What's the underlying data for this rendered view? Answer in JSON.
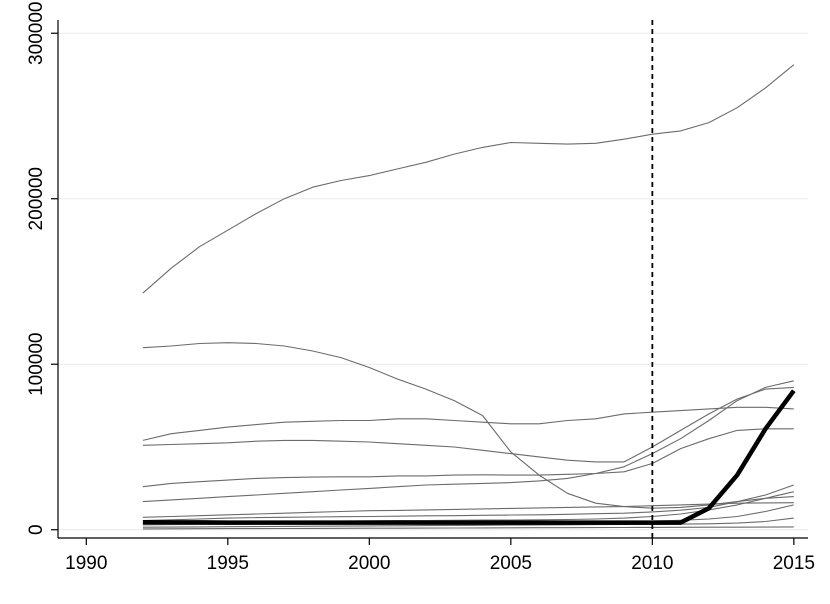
{
  "chart_data": {
    "type": "line",
    "title": "",
    "xlabel": "",
    "ylabel": "",
    "xlim": [
      1989,
      2015.5
    ],
    "ylim": [
      -5000,
      308000
    ],
    "x_ticks": [
      1990,
      1995,
      2000,
      2005,
      2010,
      2015
    ],
    "y_ticks": [
      0,
      100000,
      200000,
      300000
    ],
    "y_tick_labels": [
      "0",
      "100000",
      "200000",
      "300000"
    ],
    "grid": true,
    "legend": "none",
    "reference_line": {
      "x": 2010,
      "style": "dashed"
    },
    "colors": {
      "series": "#6b6b6b",
      "highlight": "#000000",
      "grid": "#eaeaea"
    },
    "x": [
      1992,
      1993,
      1994,
      1995,
      1996,
      1997,
      1998,
      1999,
      2000,
      2001,
      2002,
      2003,
      2004,
      2005,
      2006,
      2007,
      2008,
      2009,
      2010,
      2011,
      2012,
      2013,
      2014,
      2015
    ],
    "series": [
      {
        "values": [
          143000,
          158000,
          171000,
          181000,
          191000,
          200000,
          207000,
          211000,
          214000,
          218000,
          222000,
          227000,
          231000,
          234000,
          233500,
          233000,
          233500,
          236000,
          239000,
          241000,
          246000,
          255000,
          267000,
          281000
        ]
      },
      {
        "values": [
          110000,
          111000,
          112500,
          113000,
          112500,
          111000,
          108000,
          104000,
          98000,
          91000,
          85000,
          78000,
          69000,
          47000,
          33000,
          22000,
          16000,
          14000,
          13000,
          13500,
          15000,
          17000,
          19000,
          20000
        ]
      },
      {
        "values": [
          54000,
          58000,
          60000,
          62000,
          63500,
          65000,
          65500,
          66000,
          66000,
          67000,
          67000,
          66000,
          65000,
          64000,
          64000,
          66000,
          67000,
          70000,
          71000,
          72000,
          73000,
          74000,
          74000,
          73000
        ]
      },
      {
        "values": [
          51000,
          51500,
          52000,
          52500,
          53500,
          54000,
          54000,
          53500,
          53000,
          52000,
          51000,
          50000,
          48000,
          46000,
          44000,
          42000,
          41000,
          41000,
          50000,
          60000,
          70000,
          79000,
          85000,
          86000
        ]
      },
      {
        "values": [
          26000,
          28000,
          29000,
          30000,
          31000,
          31500,
          31800,
          32000,
          32000,
          32500,
          32500,
          33000,
          33200,
          33000,
          33000,
          33500,
          34000,
          35000,
          40000,
          49000,
          55000,
          60000,
          61000,
          61000
        ]
      },
      {
        "values": [
          17000,
          18000,
          19000,
          20000,
          21000,
          22000,
          23000,
          24000,
          25000,
          26000,
          27000,
          27500,
          28000,
          28500,
          29500,
          31000,
          34000,
          38000,
          46000,
          55000,
          66000,
          78000,
          86000,
          90000
        ]
      },
      {
        "values": [
          7500,
          8000,
          8500,
          9000,
          9500,
          10000,
          10500,
          11000,
          11500,
          11700,
          12000,
          12300,
          12600,
          12900,
          13200,
          13500,
          13800,
          14000,
          14500,
          15000,
          15500,
          16000,
          16200,
          16300
        ]
      },
      {
        "values": [
          5500,
          6000,
          6500,
          7000,
          7300,
          7500,
          7700,
          7900,
          8000,
          8200,
          8400,
          8500,
          8700,
          8900,
          9000,
          9300,
          9700,
          10000,
          10800,
          11800,
          13500,
          17000,
          21000,
          27000
        ]
      },
      {
        "values": [
          4000,
          4200,
          4400,
          4600,
          4800,
          5000,
          5200,
          5300,
          5400,
          5500,
          5600,
          5700,
          5800,
          5900,
          6000,
          6200,
          6500,
          7000,
          8000,
          9500,
          12000,
          15000,
          19000,
          23000
        ]
      },
      {
        "values": [
          3000,
          3100,
          3200,
          3300,
          3400,
          3500,
          3600,
          3700,
          3800,
          3900,
          4000,
          4100,
          4200,
          4300,
          4400,
          4500,
          4700,
          5000,
          5300,
          5700,
          6500,
          8000,
          11000,
          15000
        ]
      },
      {
        "values": [
          1500,
          1600,
          1700,
          1800,
          1900,
          2000,
          2100,
          2200,
          2300,
          2400,
          2500,
          2600,
          2700,
          2800,
          2900,
          3000,
          3100,
          3200,
          3300,
          3400,
          3600,
          4000,
          5000,
          7000
        ]
      },
      {
        "values": [
          500,
          550,
          600,
          650,
          700,
          750,
          800,
          850,
          900,
          950,
          1000,
          1050,
          1100,
          1150,
          1200,
          1250,
          1300,
          1350,
          1400,
          1450,
          1500,
          1550,
          1600,
          1700
        ]
      },
      {
        "values": [
          4500,
          4400,
          4400,
          4300,
          4300,
          4300,
          4300,
          4300,
          4300,
          4300,
          4300,
          4300,
          4300,
          4300,
          4300,
          4300,
          4300,
          4300,
          4300,
          4300,
          13000,
          33000,
          61000,
          84000
        ],
        "highlight": true
      }
    ]
  }
}
